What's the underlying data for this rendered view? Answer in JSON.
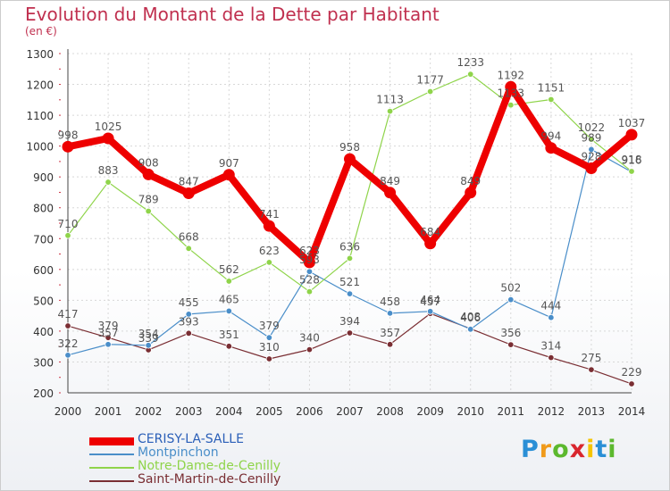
{
  "header": {
    "title": "Evolution du Montant de la Dette par Habitant",
    "subtitle": "(en €)"
  },
  "brand": {
    "logo_letters": [
      "P",
      "r",
      "o",
      "x",
      "i",
      "t",
      "i"
    ],
    "logo_colors": [
      "#2a8fd6",
      "#f09a1a",
      "#5cb82e",
      "#d9262e",
      "#f5c400",
      "#2a8fd6",
      "#5cb82e"
    ]
  },
  "chart_data": {
    "type": "line",
    "title": "Evolution du Montant de la Dette par Habitant",
    "subtitle": "(en €)",
    "xlabel": "",
    "ylabel": "",
    "x": [
      "2000",
      "2001",
      "2002",
      "2003",
      "2004",
      "2005",
      "2006",
      "2007",
      "2008",
      "2009",
      "2010",
      "2011",
      "2012",
      "2013",
      "2014"
    ],
    "ylim": [
      200,
      1300
    ],
    "yticks": [
      200,
      300,
      400,
      500,
      600,
      700,
      800,
      900,
      1000,
      1100,
      1200,
      1300
    ],
    "grid": true,
    "legend_position": "bottom-left",
    "series": [
      {
        "name": "Saint-Martin-de-Cenilly",
        "color": "#7a2e33",
        "values": [
          417,
          379,
          339,
          393,
          351,
          310,
          340,
          394,
          357,
          457,
          408,
          356,
          314,
          275,
          229
        ],
        "labels": [
          "417",
          "379",
          "339",
          "393",
          "351",
          "310",
          "340",
          "394",
          "357",
          "457",
          "408",
          "356",
          "314",
          "275",
          "229"
        ]
      },
      {
        "name": "Montpinchon",
        "color": "#4a8ec9",
        "values": [
          322,
          357,
          354,
          455,
          465,
          379,
          593,
          521,
          458,
          464,
          406,
          502,
          444,
          989,
          916
        ],
        "labels": [
          "322",
          "357",
          "354",
          "455",
          "465",
          "379",
          "593",
          "521",
          "458",
          "464",
          "406",
          "502",
          "444",
          "989",
          "916"
        ]
      },
      {
        "name": "Notre-Dame-de-Cenilly",
        "color": "#8fd44a",
        "values": [
          710,
          883,
          789,
          668,
          562,
          623,
          528,
          636,
          1113,
          1177,
          1233,
          1133,
          1151,
          1022,
          918
        ],
        "labels": [
          "710",
          "883",
          "789",
          "668",
          "562",
          "623",
          "528",
          "636",
          "1113",
          "1177",
          "1233",
          "1133",
          "1151",
          "1022",
          "918"
        ]
      },
      {
        "name": "CERISY-LA-SALLE",
        "color": "#ee0000",
        "values": [
          998,
          1025,
          908,
          847,
          907,
          741,
          623,
          958,
          849,
          684,
          849,
          1192,
          994,
          928,
          1037
        ],
        "labels": [
          "998",
          "1025",
          "908",
          "847",
          "907",
          "741",
          "623",
          "958",
          "849",
          "684",
          "849",
          "1192",
          "994",
          "928",
          "1037"
        ]
      }
    ]
  },
  "legend": {
    "items": [
      {
        "label": "CERISY-LA-SALLE",
        "color": "#ee0000"
      },
      {
        "label": "Montpinchon",
        "color": "#4a8ec9"
      },
      {
        "label": "Notre-Dame-de-Cenilly",
        "color": "#8fd44a"
      },
      {
        "label": "Saint-Martin-de-Cenilly",
        "color": "#7a2e33"
      }
    ]
  }
}
